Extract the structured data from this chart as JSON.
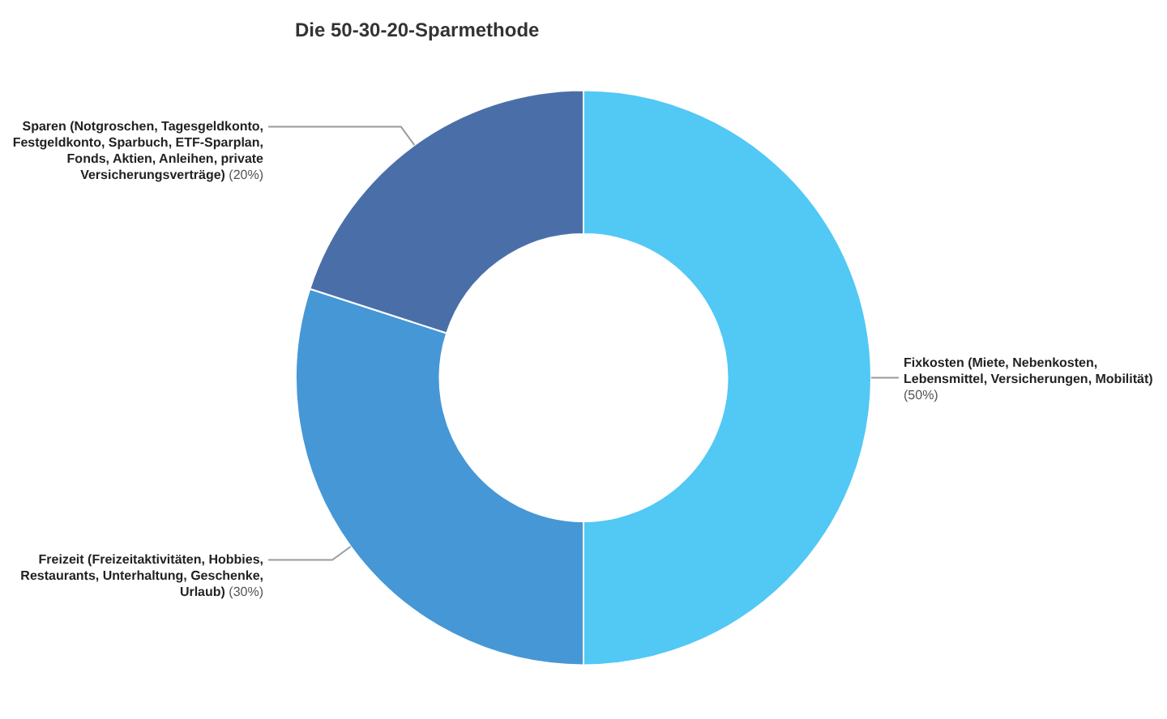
{
  "chart_data": {
    "type": "donut",
    "title": "Die 50-30-20-Sparmethode",
    "categories": [
      "Fixkosten (Miete, Nebenkosten, Lebensmittel, Versicherungen, Mobilität)",
      "Freizeit (Freizeitaktivitäten, Hobbies, Restaurants, Unterhaltung, Geschenke, Urlaub)",
      "Sparen (Notgroschen, Tagesgeldkonto, Festgeldkonto, Sparbuch, ETF-Sparplan, Fonds, Aktien, Anleihen, private Versicherungsverträge)"
    ],
    "values": [
      50,
      30,
      20
    ],
    "value_labels": [
      "(50%)",
      "(30%)",
      "(20%)"
    ],
    "colors": [
      "#52c8f5",
      "#4697d6",
      "#4a6fa8"
    ],
    "legend": false
  }
}
